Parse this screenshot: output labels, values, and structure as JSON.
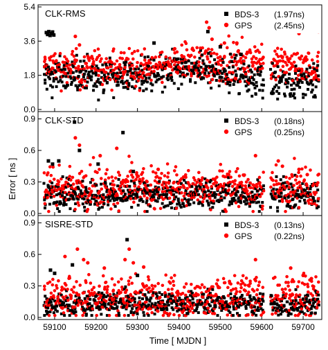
{
  "chart_data": {
    "type": "scatter",
    "xlabel": "Time [ MJDN ]",
    "ylabel": "Error [ ns ]",
    "xlim": [
      59060,
      59745
    ],
    "xticks": [
      59100,
      59200,
      59300,
      59400,
      59500,
      59600,
      59700
    ],
    "colors": {
      "BDS-3": "#000000",
      "GPS": "#ff0000"
    },
    "gap": [
      59605,
      59622
    ],
    "panels": [
      {
        "title": "CLK-RMS",
        "ylim": [
          0,
          5.4
        ],
        "yticks": [
          "0.0",
          "1.8",
          "3.6",
          "5.4"
        ],
        "legend_position": "top-right",
        "series": [
          {
            "name": "BDS-3",
            "stat": "(1.97ns)",
            "marker": "square"
          },
          {
            "name": "GPS",
            "stat": "(2.45ns)",
            "marker": "circle"
          }
        ],
        "bds_base": 1.8,
        "gps_base": 2.15,
        "bds_spread": 0.45,
        "gps_spread": 0.5,
        "points": {
          "BDS-3": [
            [
              59080,
              4.05
            ],
            [
              59083,
              3.95
            ],
            [
              59086,
              4.1
            ],
            [
              59089,
              3.9
            ],
            [
              59092,
              4.0
            ],
            [
              59095,
              4.08
            ],
            [
              59098,
              3.92
            ],
            [
              59340,
              3.5
            ],
            [
              59470,
              4.1
            ],
            [
              59500,
              3.3
            ],
            [
              59550,
              2.9
            ]
          ],
          "GPS": [
            [
              59150,
              3.85
            ],
            [
              59160,
              3.4
            ],
            [
              59390,
              3.2
            ],
            [
              59467,
              4.6
            ],
            [
              59473,
              4.3
            ],
            [
              59480,
              3.7
            ],
            [
              59510,
              3.5
            ],
            [
              59540,
              3.5
            ],
            [
              59690,
              4.0
            ],
            [
              59728,
              4.8
            ],
            [
              59737,
              4.1
            ]
          ]
        }
      },
      {
        "title": "CLK-STD",
        "ylim": [
          0,
          0.95
        ],
        "yticks": [
          "0.0",
          "0.3",
          "0.6",
          "0.9"
        ],
        "legend_position": "top-right",
        "series": [
          {
            "name": "BDS-3",
            "stat": "(0.18ns)",
            "marker": "square"
          },
          {
            "name": "GPS",
            "stat": "(0.25ns)",
            "marker": "circle"
          }
        ],
        "bds_base": 0.18,
        "gps_base": 0.24,
        "bds_spread": 0.07,
        "gps_spread": 0.1,
        "points": {
          "BDS-3": [
            [
              59085,
              0.5
            ],
            [
              59095,
              0.47
            ],
            [
              59110,
              0.5
            ],
            [
              59148,
              0.87
            ],
            [
              59160,
              0.6
            ],
            [
              59205,
              0.47
            ],
            [
              59265,
              0.77
            ],
            [
              59290,
              0.4
            ]
          ],
          "GPS": [
            [
              59150,
              0.72
            ],
            [
              59160,
              0.65
            ],
            [
              59210,
              0.55
            ],
            [
              59250,
              0.62
            ],
            [
              59350,
              0.42
            ],
            [
              59520,
              0.37
            ],
            [
              59585,
              0.55
            ],
            [
              59640,
              0.5
            ],
            [
              59650,
              0.45
            ],
            [
              59690,
              0.42
            ],
            [
              59710,
              0.37
            ]
          ]
        }
      },
      {
        "title": "SISRE-STD",
        "ylim": [
          0,
          0.95
        ],
        "yticks": [
          "0.0",
          "0.3",
          "0.6",
          "0.9"
        ],
        "legend_position": "top-right",
        "series": [
          {
            "name": "BDS-3",
            "stat": "(0.13ns)",
            "marker": "square"
          },
          {
            "name": "GPS",
            "stat": "(0.22ns)",
            "marker": "circle"
          }
        ],
        "bds_base": 0.13,
        "gps_base": 0.19,
        "bds_spread": 0.06,
        "gps_spread": 0.1,
        "points": {
          "BDS-3": [
            [
              59090,
              0.45
            ],
            [
              59100,
              0.42
            ],
            [
              59143,
              0.5
            ],
            [
              59275,
              0.74
            ],
            [
              59300,
              0.4
            ]
          ],
          "GPS": [
            [
              59125,
              0.58
            ],
            [
              59155,
              0.65
            ],
            [
              59170,
              0.55
            ],
            [
              59180,
              0.52
            ],
            [
              59220,
              0.47
            ],
            [
              59270,
              0.55
            ],
            [
              59280,
              0.65
            ],
            [
              59290,
              0.52
            ],
            [
              59315,
              0.48
            ],
            [
              59585,
              0.55
            ],
            [
              59670,
              0.47
            ],
            [
              59700,
              0.4
            ],
            [
              59720,
              0.37
            ]
          ]
        }
      }
    ]
  }
}
